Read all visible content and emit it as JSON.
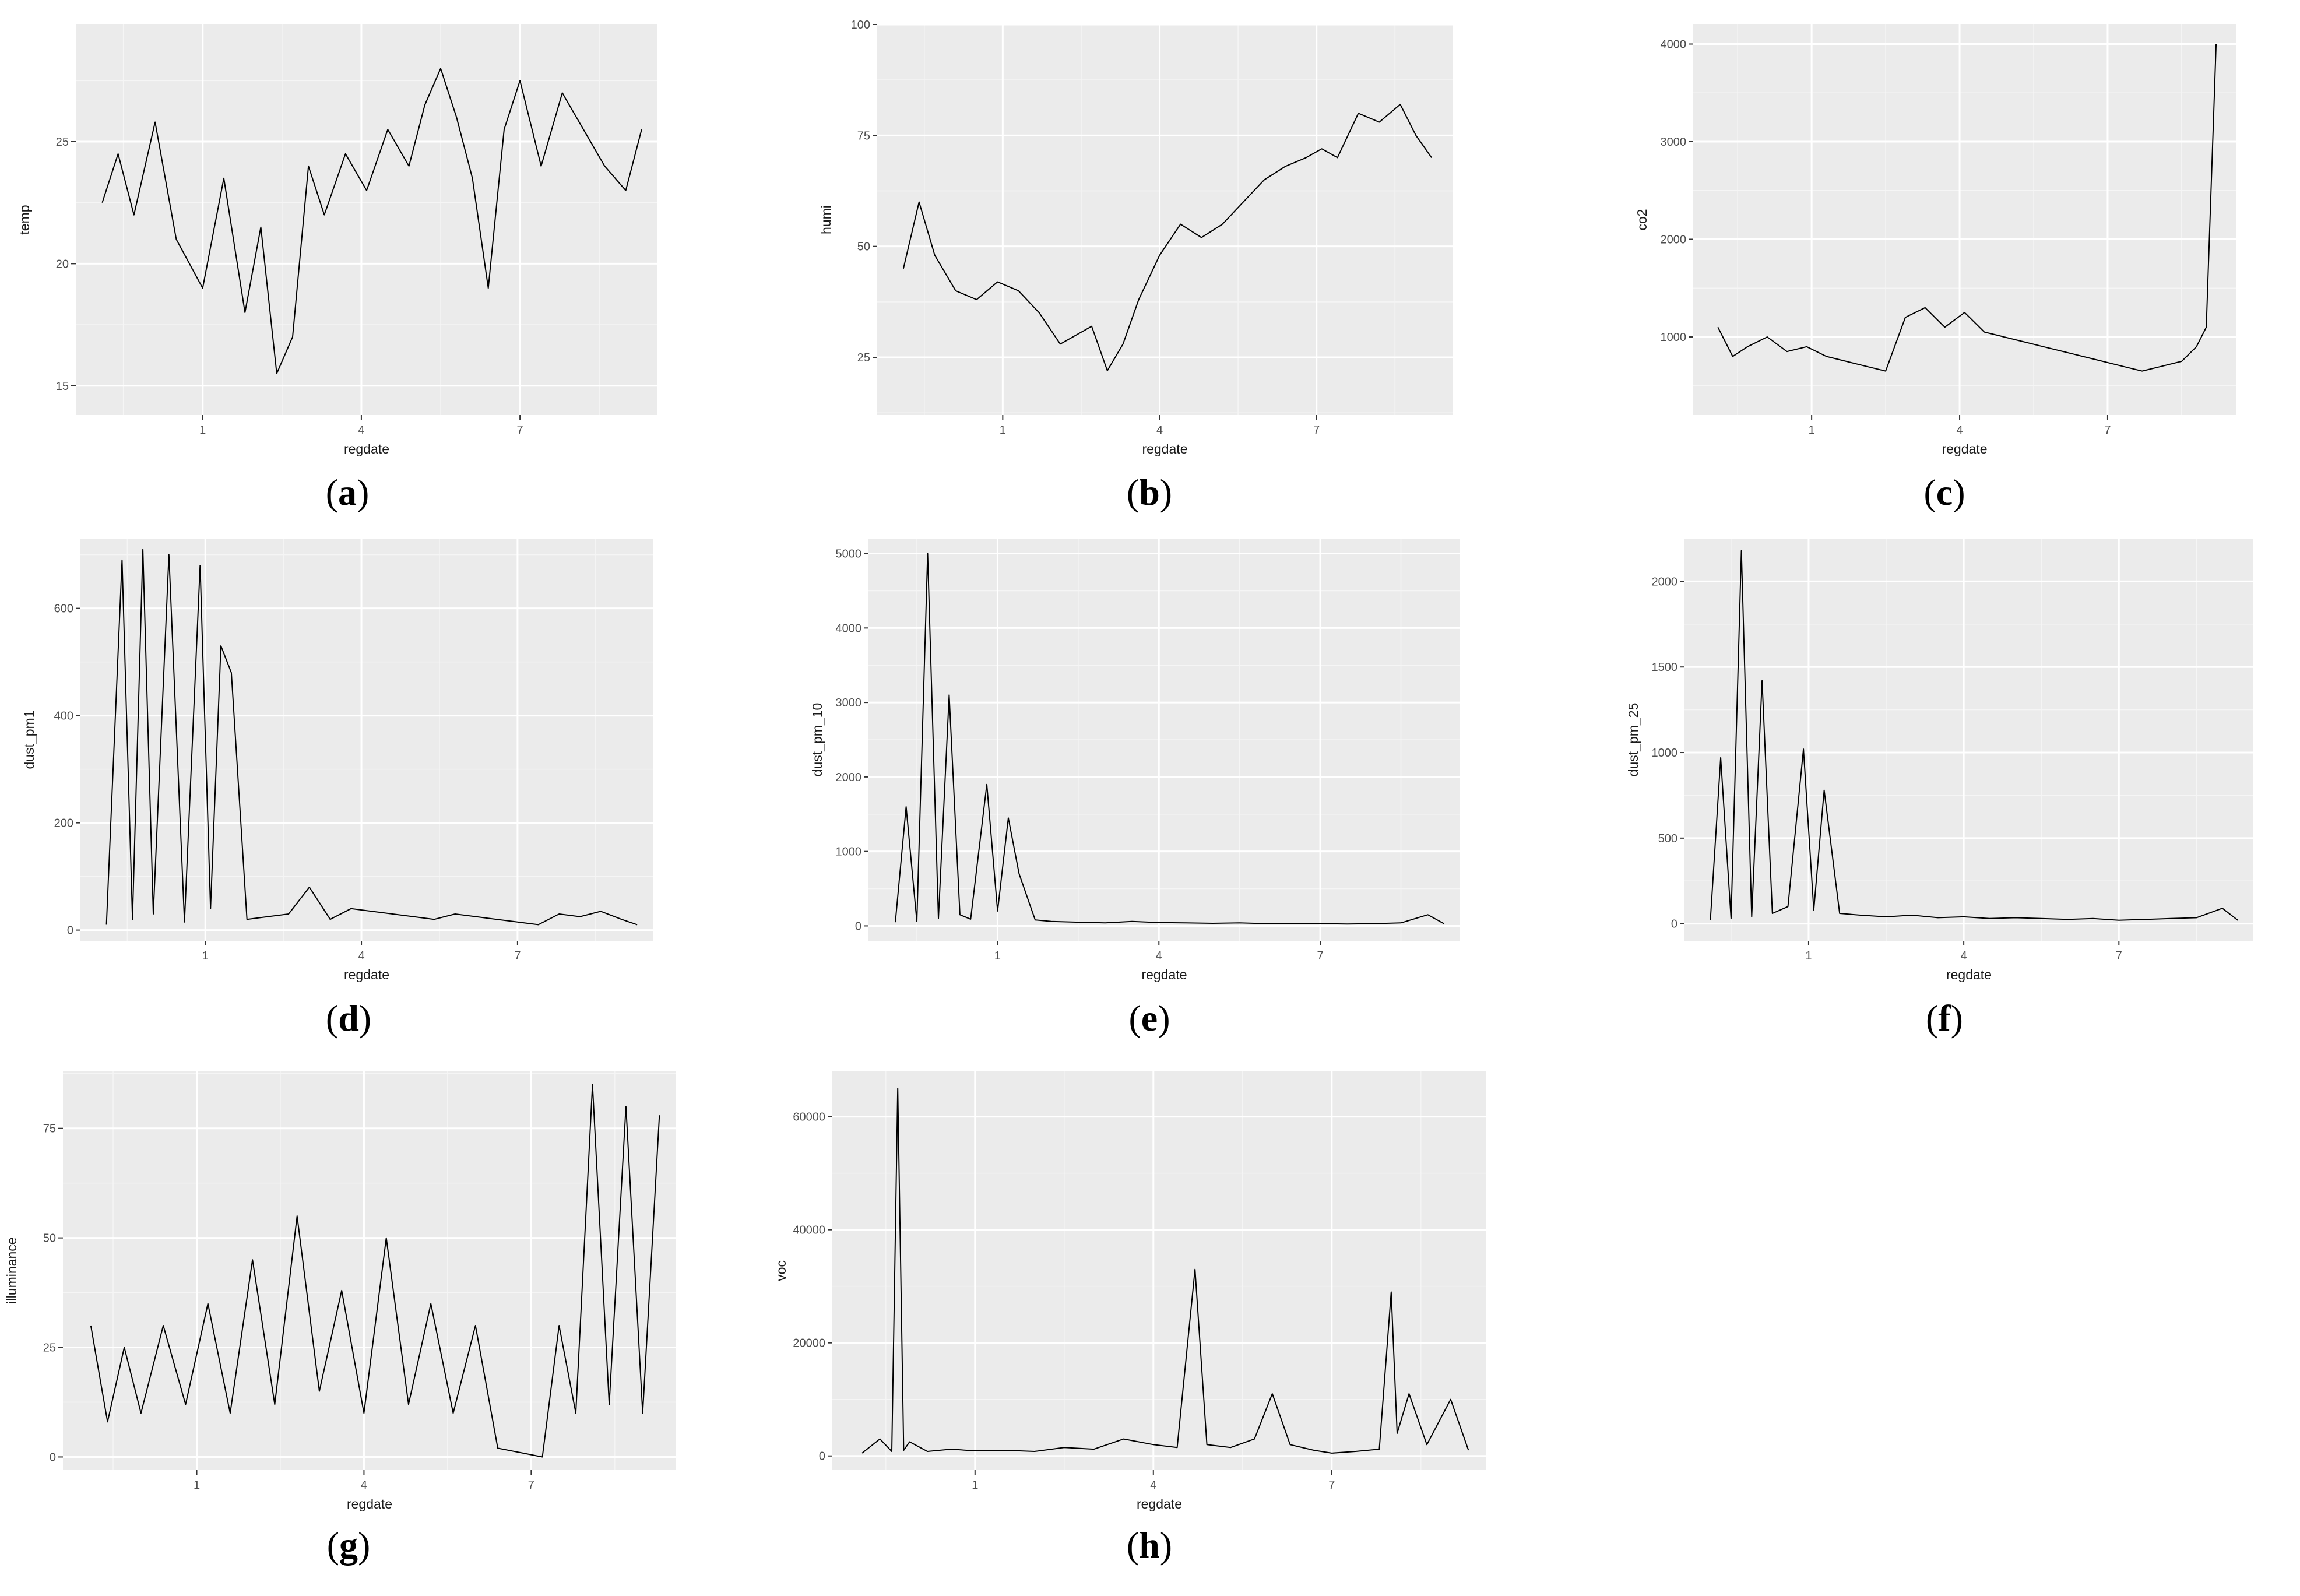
{
  "chart_data": [
    {
      "id": "a",
      "caption_letter": "a",
      "type": "line",
      "xlabel": "regdate",
      "ylabel": "temp",
      "x_ticks": [
        1,
        4,
        7
      ],
      "x_range": [
        -1.4,
        9.6
      ],
      "y_ticks": [
        15,
        20,
        25
      ],
      "ylim": [
        13.8,
        29.8
      ],
      "grid": true,
      "series": [
        {
          "x": [
            -0.9,
            -0.6,
            -0.3,
            0.1,
            0.5,
            1.0,
            1.4,
            1.8,
            2.1,
            2.4,
            2.7,
            3.0,
            3.3,
            3.7,
            4.1,
            4.5,
            4.9,
            5.2,
            5.5,
            5.8,
            6.1,
            6.4,
            6.7,
            7.0,
            7.4,
            7.8,
            8.2,
            8.6,
            9.0,
            9.3
          ],
          "y": [
            22.5,
            24.5,
            22.0,
            25.8,
            21.0,
            19.0,
            23.5,
            18.0,
            21.5,
            15.5,
            17.0,
            24.0,
            22.0,
            24.5,
            23.0,
            25.5,
            24.0,
            26.5,
            28.0,
            26.0,
            23.5,
            19.0,
            25.5,
            27.5,
            24.0,
            27.0,
            25.5,
            24.0,
            23.0,
            25.5
          ]
        }
      ]
    },
    {
      "id": "b",
      "caption_letter": "b",
      "type": "line",
      "xlabel": "regdate",
      "ylabel": "humi",
      "x_ticks": [
        1,
        4,
        7
      ],
      "x_range": [
        -1.4,
        9.6
      ],
      "y_ticks": [
        25,
        50,
        75,
        100
      ],
      "ylim": [
        12,
        100
      ],
      "grid": true,
      "series": [
        {
          "x": [
            -0.9,
            -0.6,
            -0.3,
            0.1,
            0.5,
            0.9,
            1.3,
            1.7,
            2.1,
            2.4,
            2.7,
            3.0,
            3.3,
            3.6,
            4.0,
            4.4,
            4.8,
            5.2,
            5.6,
            6.0,
            6.4,
            6.8,
            7.1,
            7.4,
            7.8,
            8.2,
            8.6,
            8.9,
            9.2
          ],
          "y": [
            45,
            60,
            48,
            40,
            38,
            42,
            40,
            35,
            28,
            30,
            32,
            22,
            28,
            38,
            48,
            55,
            52,
            55,
            60,
            65,
            68,
            70,
            72,
            70,
            80,
            78,
            82,
            75,
            70
          ]
        }
      ]
    },
    {
      "id": "c",
      "caption_letter": "c",
      "type": "line",
      "xlabel": "regdate",
      "ylabel": "co2",
      "x_ticks": [
        1,
        4,
        7
      ],
      "x_range": [
        -1.4,
        9.6
      ],
      "y_ticks": [
        1000,
        2000,
        3000,
        4000
      ],
      "ylim": [
        200,
        4200
      ],
      "grid": true,
      "series": [
        {
          "x": [
            -0.9,
            -0.6,
            -0.3,
            0.1,
            0.5,
            0.9,
            1.3,
            1.7,
            2.1,
            2.5,
            2.9,
            3.3,
            3.7,
            4.1,
            4.5,
            4.9,
            5.3,
            5.7,
            6.1,
            6.5,
            6.9,
            7.3,
            7.7,
            8.1,
            8.5,
            8.8,
            9.0,
            9.2
          ],
          "y": [
            1100,
            800,
            900,
            1000,
            850,
            900,
            800,
            750,
            700,
            650,
            1200,
            1300,
            1100,
            1250,
            1050,
            1000,
            950,
            900,
            850,
            800,
            750,
            700,
            650,
            700,
            750,
            900,
            1100,
            4000
          ]
        }
      ]
    },
    {
      "id": "d",
      "caption_letter": "d",
      "type": "line",
      "xlabel": "regdate",
      "ylabel": "dust_pm1",
      "x_ticks": [
        1,
        4,
        7
      ],
      "x_range": [
        -1.4,
        9.6
      ],
      "y_ticks": [
        0,
        200,
        400,
        600
      ],
      "ylim": [
        -20,
        730
      ],
      "grid": true,
      "series": [
        {
          "x": [
            -0.9,
            -0.6,
            -0.4,
            -0.2,
            0.0,
            0.3,
            0.6,
            0.9,
            1.1,
            1.3,
            1.5,
            1.8,
            2.2,
            2.6,
            3.0,
            3.4,
            3.8,
            4.2,
            4.6,
            5.0,
            5.4,
            5.8,
            6.2,
            6.6,
            7.0,
            7.4,
            7.8,
            8.2,
            8.6,
            9.0,
            9.3
          ],
          "y": [
            10,
            690,
            20,
            710,
            30,
            700,
            15,
            680,
            40,
            530,
            480,
            20,
            25,
            30,
            80,
            20,
            40,
            35,
            30,
            25,
            20,
            30,
            25,
            20,
            15,
            10,
            30,
            25,
            35,
            20,
            10
          ]
        }
      ]
    },
    {
      "id": "e",
      "caption_letter": "e",
      "type": "line",
      "xlabel": "regdate",
      "ylabel": "dust_pm_10",
      "x_ticks": [
        1,
        4,
        7
      ],
      "x_range": [
        -1.4,
        9.6
      ],
      "y_ticks": [
        0,
        1000,
        2000,
        3000,
        4000,
        5000
      ],
      "ylim": [
        -200,
        5200
      ],
      "grid": true,
      "series": [
        {
          "x": [
            -0.9,
            -0.7,
            -0.5,
            -0.3,
            -0.1,
            0.1,
            0.3,
            0.5,
            0.8,
            1.0,
            1.2,
            1.4,
            1.7,
            2.0,
            2.5,
            3.0,
            3.5,
            4.0,
            4.5,
            5.0,
            5.5,
            6.0,
            6.5,
            7.0,
            7.5,
            8.0,
            8.5,
            9.0,
            9.3
          ],
          "y": [
            50,
            1600,
            60,
            5000,
            100,
            3100,
            150,
            90,
            1900,
            200,
            1450,
            700,
            80,
            60,
            50,
            40,
            60,
            45,
            40,
            35,
            40,
            30,
            35,
            30,
            25,
            30,
            40,
            150,
            30
          ]
        }
      ]
    },
    {
      "id": "f",
      "caption_letter": "f",
      "type": "line",
      "xlabel": "regdate",
      "ylabel": "dust_pm_25",
      "x_ticks": [
        1,
        4,
        7
      ],
      "x_range": [
        -1.4,
        9.6
      ],
      "y_ticks": [
        0,
        500,
        1000,
        1500,
        2000
      ],
      "ylim": [
        -100,
        2250
      ],
      "grid": true,
      "series": [
        {
          "x": [
            -0.9,
            -0.7,
            -0.5,
            -0.3,
            -0.1,
            0.1,
            0.3,
            0.6,
            0.9,
            1.1,
            1.3,
            1.6,
            2.0,
            2.5,
            3.0,
            3.5,
            4.0,
            4.5,
            5.0,
            5.5,
            6.0,
            6.5,
            7.0,
            7.5,
            8.0,
            8.5,
            9.0,
            9.3
          ],
          "y": [
            20,
            970,
            30,
            2180,
            40,
            1420,
            60,
            100,
            1020,
            80,
            780,
            60,
            50,
            40,
            50,
            35,
            40,
            30,
            35,
            30,
            25,
            30,
            20,
            25,
            30,
            35,
            90,
            20
          ]
        }
      ]
    },
    {
      "id": "g",
      "caption_letter": "g",
      "type": "line",
      "xlabel": "regdate",
      "ylabel": "illuminance",
      "x_ticks": [
        1,
        4,
        7
      ],
      "x_range": [
        -1.4,
        9.6
      ],
      "y_ticks": [
        0,
        25,
        50,
        75
      ],
      "ylim": [
        -3,
        88
      ],
      "grid": true,
      "series": [
        {
          "x": [
            -0.9,
            -0.6,
            -0.3,
            0.0,
            0.4,
            0.8,
            1.2,
            1.6,
            2.0,
            2.4,
            2.8,
            3.2,
            3.6,
            4.0,
            4.4,
            4.8,
            5.2,
            5.6,
            6.0,
            6.4,
            6.8,
            7.2,
            7.5,
            7.8,
            8.1,
            8.4,
            8.7,
            9.0,
            9.3
          ],
          "y": [
            30,
            8,
            25,
            10,
            30,
            12,
            35,
            10,
            45,
            12,
            55,
            15,
            38,
            10,
            50,
            12,
            35,
            10,
            30,
            2,
            1,
            0,
            30,
            10,
            85,
            12,
            80,
            10,
            78
          ]
        }
      ]
    },
    {
      "id": "h",
      "caption_letter": "h",
      "type": "line",
      "xlabel": "regdate",
      "ylabel": "voc",
      "x_ticks": [
        1,
        4,
        7
      ],
      "x_range": [
        -1.4,
        9.6
      ],
      "y_ticks": [
        0,
        20000,
        40000,
        60000
      ],
      "ylim": [
        -2500,
        68000
      ],
      "grid": true,
      "series": [
        {
          "x": [
            -0.9,
            -0.6,
            -0.4,
            -0.3,
            -0.2,
            -0.1,
            0.2,
            0.6,
            1.0,
            1.5,
            2.0,
            2.5,
            3.0,
            3.5,
            4.0,
            4.4,
            4.7,
            4.9,
            5.3,
            5.7,
            6.0,
            6.3,
            6.7,
            7.0,
            7.4,
            7.8,
            8.0,
            8.1,
            8.3,
            8.6,
            9.0,
            9.3
          ],
          "y": [
            500,
            3000,
            800,
            65000,
            1000,
            2500,
            800,
            1200,
            900,
            1000,
            800,
            1500,
            1200,
            3000,
            2000,
            1500,
            33000,
            2000,
            1500,
            3000,
            11000,
            2000,
            1000,
            500,
            800,
            1200,
            29000,
            4000,
            11000,
            2000,
            10000,
            1000
          ]
        }
      ]
    }
  ]
}
